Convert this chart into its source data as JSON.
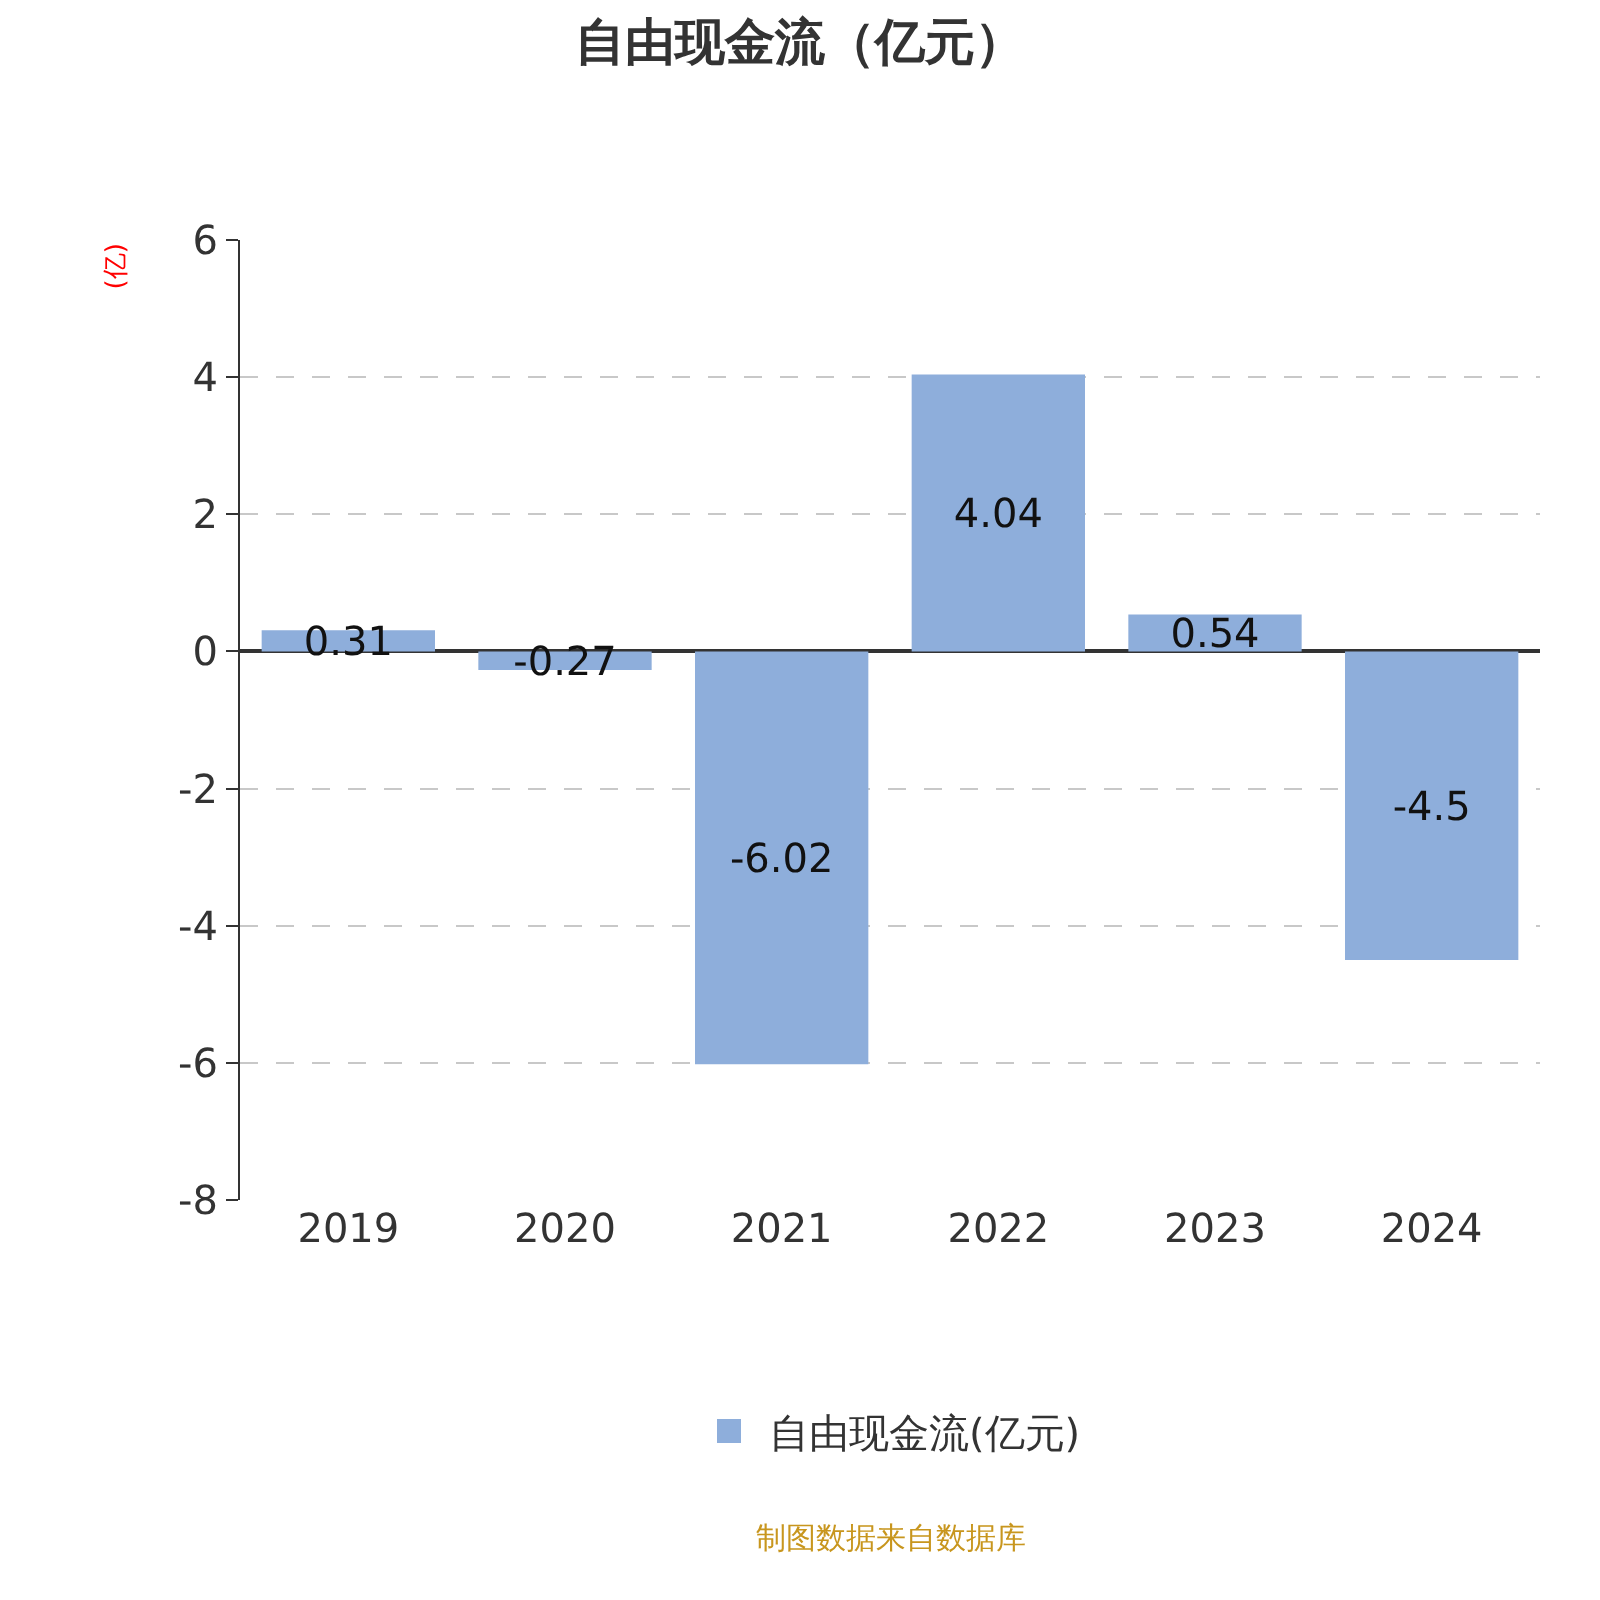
{
  "chart_data": {
    "type": "bar",
    "title": "自由现金流（亿元）",
    "ylabel": "(亿)",
    "categories": [
      "2019",
      "2020",
      "2021",
      "2022",
      "2023",
      "2024"
    ],
    "series": [
      {
        "name": "自由现金流(亿元)",
        "color": "#8eaedb",
        "values": [
          0.31,
          -0.27,
          -6.02,
          4.04,
          0.54,
          -4.5
        ]
      }
    ],
    "ylim": [
      -8,
      6
    ],
    "yticks": [
      -8,
      -6,
      -4,
      -2,
      0,
      2,
      4,
      6
    ],
    "grid": "y",
    "legend": "bottom",
    "data_labels": true,
    "annotations": [
      "制图数据来自数据库"
    ]
  }
}
